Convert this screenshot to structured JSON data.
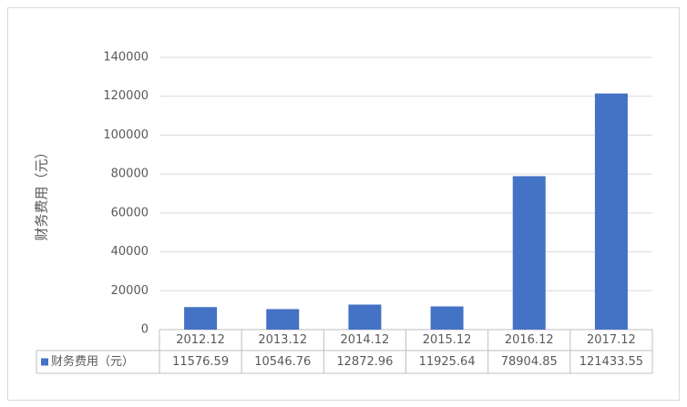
{
  "chart_data": {
    "type": "bar",
    "ylabel": "财务费用（元）",
    "categories": [
      "2012.12",
      "2013.12",
      "2014.12",
      "2015.12",
      "2016.12",
      "2017.12"
    ],
    "series": [
      {
        "name": "财务费用（元）",
        "color": "#4472c4",
        "values": [
          11576.59,
          10546.76,
          12872.96,
          11925.64,
          78904.85,
          121433.55
        ]
      }
    ],
    "ylim": [
      0,
      140000
    ],
    "yticks": [
      0,
      20000,
      40000,
      60000,
      80000,
      100000,
      120000,
      140000
    ],
    "grid": true
  }
}
